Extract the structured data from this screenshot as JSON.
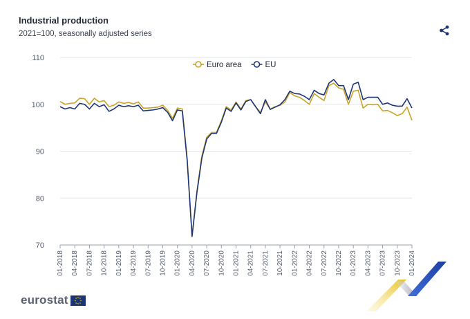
{
  "header": {
    "title": "Industrial production",
    "subtitle": "2021=100, seasonally adjusted series"
  },
  "icons": {
    "share": "share-icon"
  },
  "footer": {
    "logo_text": "eurostat"
  },
  "colors": {
    "euro_area": "#c9a227",
    "eu": "#1c3574",
    "grid": "#e3e5ec",
    "axis": "#9aa0ad"
  },
  "chart_data": {
    "type": "line",
    "title": "Industrial production",
    "subtitle": "2021=100, seasonally adjusted series",
    "xlabel": "",
    "ylabel": "",
    "ylim": [
      70,
      110
    ],
    "yticks": [
      70,
      80,
      90,
      100,
      110
    ],
    "grid": true,
    "legend_position": "top-center",
    "x": [
      "01-2018",
      "02-2018",
      "03-2018",
      "04-2018",
      "05-2018",
      "06-2018",
      "07-2018",
      "08-2018",
      "09-2018",
      "10-2018",
      "11-2018",
      "12-2018",
      "01-2019",
      "02-2019",
      "03-2019",
      "04-2019",
      "05-2019",
      "06-2019",
      "07-2019",
      "08-2019",
      "09-2019",
      "10-2019",
      "11-2019",
      "12-2019",
      "01-2020",
      "02-2020",
      "03-2020",
      "04-2020",
      "05-2020",
      "06-2020",
      "07-2020",
      "08-2020",
      "09-2020",
      "10-2020",
      "11-2020",
      "12-2020",
      "01-2021",
      "02-2021",
      "03-2021",
      "04-2021",
      "05-2021",
      "06-2021",
      "07-2021",
      "08-2021",
      "09-2021",
      "10-2021",
      "11-2021",
      "12-2021",
      "01-2022",
      "02-2022",
      "03-2022",
      "04-2022",
      "05-2022",
      "06-2022",
      "07-2022",
      "08-2022",
      "09-2022",
      "10-2022",
      "11-2022",
      "12-2022",
      "01-2023",
      "02-2023",
      "03-2023",
      "04-2023",
      "05-2023",
      "06-2023",
      "07-2023",
      "08-2023",
      "09-2023",
      "10-2023",
      "11-2023",
      "12-2023",
      "01-2024"
    ],
    "xticks": [
      "01-2018",
      "04-2018",
      "07-2018",
      "10-2018",
      "01-2019",
      "04-2019",
      "07-2019",
      "10-2019",
      "01-2020",
      "04-2020",
      "07-2020",
      "10-2020",
      "01-2021",
      "04-2021",
      "07-2021",
      "10-2021",
      "01-2022",
      "04-2022",
      "07-2022",
      "10-2022",
      "01-2023",
      "04-2023",
      "07-2023",
      "10-2023",
      "01-2024"
    ],
    "series": [
      {
        "name": "Euro area",
        "color": "#c9a227",
        "values": [
          100.6,
          100.0,
          100.2,
          100.3,
          101.3,
          101.2,
          100.0,
          101.3,
          100.5,
          100.8,
          99.5,
          99.8,
          100.5,
          100.2,
          100.4,
          100.1,
          100.5,
          99.2,
          99.2,
          99.3,
          99.4,
          99.8,
          98.7,
          97.0,
          99.2,
          99.0,
          88.5,
          72.0,
          81.5,
          89.0,
          93.0,
          94.0,
          94.0,
          96.5,
          99.5,
          98.8,
          100.5,
          99.0,
          100.8,
          101.0,
          99.5,
          98.3,
          100.5,
          99.0,
          99.5,
          99.8,
          100.5,
          102.5,
          101.8,
          101.5,
          100.8,
          100.0,
          102.3,
          101.5,
          100.8,
          104.0,
          104.5,
          103.5,
          103.2,
          100.0,
          102.8,
          103.0,
          99.2,
          100.0,
          99.9,
          100.0,
          98.6,
          98.7,
          98.2,
          97.6,
          98.0,
          99.4,
          96.6
        ]
      },
      {
        "name": "EU",
        "color": "#1c3574",
        "values": [
          99.5,
          99.0,
          99.3,
          99.0,
          100.2,
          100.0,
          99.0,
          100.2,
          99.5,
          99.9,
          98.5,
          99.0,
          99.8,
          99.5,
          99.7,
          99.5,
          99.8,
          98.6,
          98.7,
          98.8,
          99.0,
          99.3,
          98.3,
          96.5,
          98.8,
          98.6,
          88.0,
          71.8,
          81.2,
          88.5,
          92.6,
          93.8,
          93.8,
          96.2,
          99.2,
          98.5,
          100.3,
          98.8,
          100.6,
          101.0,
          99.5,
          98.0,
          101.0,
          98.9,
          99.4,
          99.9,
          101.0,
          102.8,
          102.3,
          102.2,
          101.7,
          101.0,
          103.0,
          102.3,
          102.0,
          104.5,
          105.3,
          104.0,
          104.0,
          101.0,
          104.3,
          104.7,
          101.0,
          101.5,
          101.5,
          101.5,
          100.0,
          100.3,
          99.8,
          99.6,
          99.6,
          101.2,
          99.2
        ]
      }
    ]
  }
}
